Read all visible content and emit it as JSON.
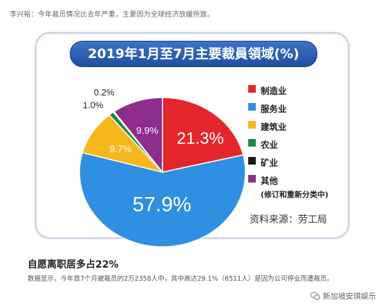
{
  "top_caption": "李兴裕：今年裁员情况比去年严重，主要因为全球经济放缓所致。",
  "chart_data": {
    "type": "pie",
    "title": "2019年1月至7月主要裁員領域(%)",
    "slices": [
      {
        "label": "制造业",
        "value": 21.3,
        "display": "21.3%",
        "color": "#e3262b"
      },
      {
        "label": "服务业",
        "value": 57.9,
        "display": "57.9%",
        "color": "#2f8fe0"
      },
      {
        "label": "建筑业",
        "value": 9.7,
        "display": "9.7%",
        "color": "#f6b81c"
      },
      {
        "label": "农业",
        "value": 1.0,
        "display": "1.0%",
        "color": "#1d8a4c"
      },
      {
        "label": "矿业",
        "value": 0.2,
        "display": "0.2%",
        "color": "#1a1a1a"
      },
      {
        "label": "其他",
        "value": 9.9,
        "display": "9.9%",
        "color": "#8e2d8c"
      }
    ],
    "legend_note": "(修订和重新分类中)",
    "legend_position": "right",
    "source": "资料来源：劳工局"
  },
  "heading": "自愿离职居多占22%",
  "body_text": "数据显示，今年首7个月被裁员的2万2358人中，其中高达29.1%（6511人）是因为公司停业而遭裁员。",
  "watermark": "新加坡安琪娱乐",
  "icons": {
    "watermark": "wechat-icon"
  }
}
